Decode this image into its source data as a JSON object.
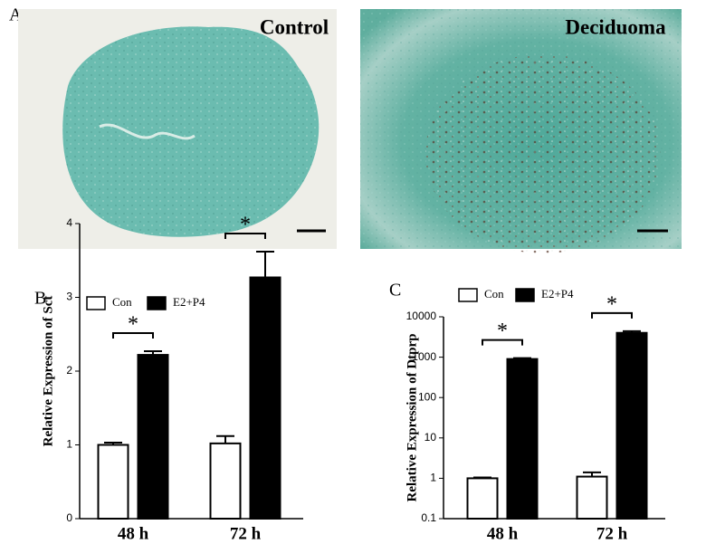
{
  "figure_label": "A",
  "images": [
    {
      "label": "Control"
    },
    {
      "label": "Deciduoma"
    }
  ],
  "chart_data": [
    {
      "type": "bar",
      "panel": "B",
      "ylabel": "Relative Expression of Sct",
      "categories": [
        "48 h",
        "72 h"
      ],
      "series": [
        {
          "name": "Con",
          "color": "#ffffff",
          "values": [
            1.0,
            1.02
          ],
          "errors": [
            0.03,
            0.1
          ]
        },
        {
          "name": "E2+P4",
          "color": "#000000",
          "values": [
            2.22,
            3.27
          ],
          "errors": [
            0.05,
            0.35
          ]
        }
      ],
      "annotations": [
        "*",
        "*"
      ],
      "ylim": [
        0,
        4
      ],
      "yticks": [
        0,
        1,
        2,
        3,
        4
      ],
      "log_scale": false
    },
    {
      "type": "bar",
      "panel": "C",
      "ylabel": "Relative Expression of Dtprp",
      "categories": [
        "48 h",
        "72 h"
      ],
      "series": [
        {
          "name": "Con",
          "color": "#ffffff",
          "values": [
            1.0,
            1.1
          ],
          "errors": [
            0.05,
            0.3
          ]
        },
        {
          "name": "E2+P4",
          "color": "#000000",
          "values": [
            900,
            4000
          ],
          "errors": [
            50,
            400
          ]
        }
      ],
      "annotations": [
        "*",
        "*"
      ],
      "ylim": [
        0.1,
        10000
      ],
      "yticks": [
        0.1,
        1,
        10,
        100,
        1000,
        10000
      ],
      "log_scale": true
    }
  ]
}
